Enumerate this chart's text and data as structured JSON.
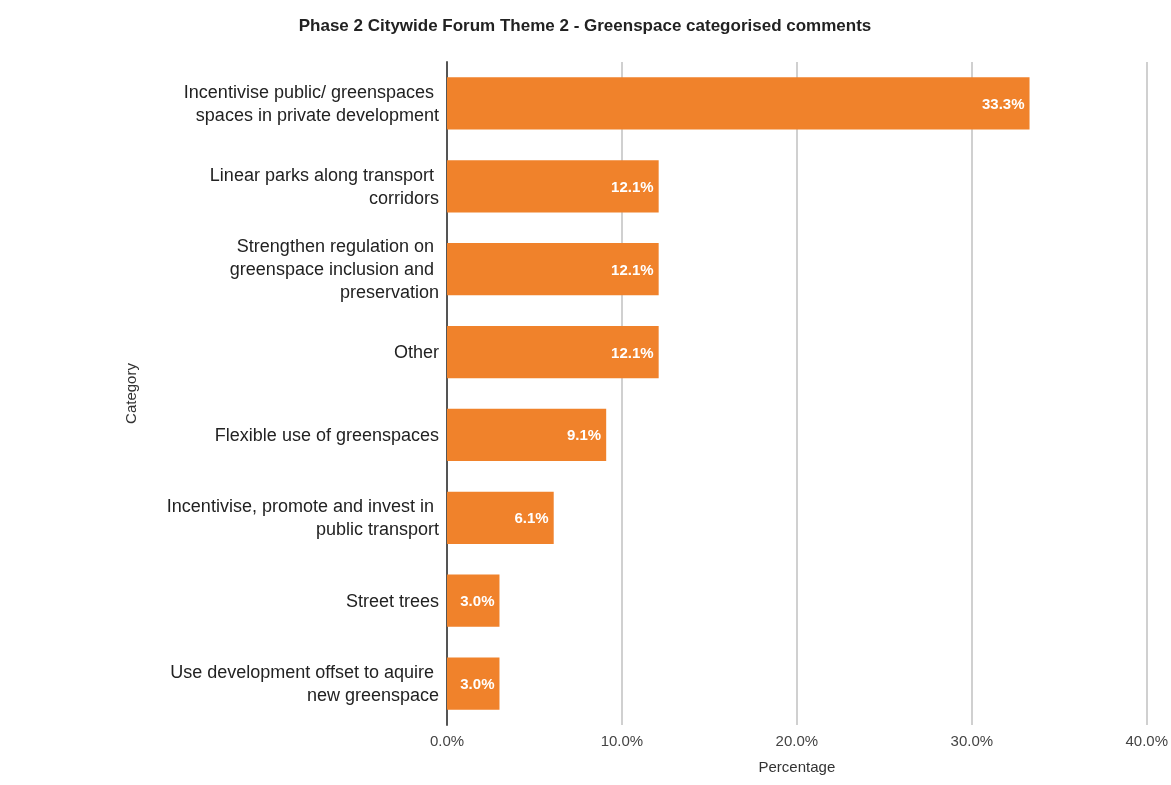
{
  "chart_data": {
    "type": "bar",
    "orientation": "horizontal",
    "title": "Phase 2 Citywide Forum Theme 2 - Greenspace categorised comments",
    "xlabel": "Percentage",
    "ylabel": "Category",
    "categories": [
      "Incentivise public/ greenspaces spaces in private development",
      "Linear parks along transport corridors",
      "Strengthen regulation on greenspace inclusion and preservation",
      "Other",
      "Flexible use of greenspaces",
      "Incentivise, promote and invest in public transport",
      "Street trees",
      "Use development offset to aquire new greenspace"
    ],
    "values": [
      33.3,
      12.1,
      12.1,
      12.1,
      9.1,
      6.1,
      3.0,
      3.0
    ],
    "value_labels": [
      "33.3%",
      "12.1%",
      "12.1%",
      "12.1%",
      "9.1%",
      "6.1%",
      "3.0%",
      "3.0%"
    ],
    "color": "#f0822b",
    "xlim": [
      0,
      40
    ],
    "xticks": [
      {
        "value": 0,
        "label": "0.0%"
      },
      {
        "value": 10,
        "label": "10.0%"
      },
      {
        "value": 20,
        "label": "20.0%"
      },
      {
        "value": 30,
        "label": "30.0%"
      },
      {
        "value": 40,
        "label": "40.0%"
      }
    ],
    "grid": "x"
  }
}
